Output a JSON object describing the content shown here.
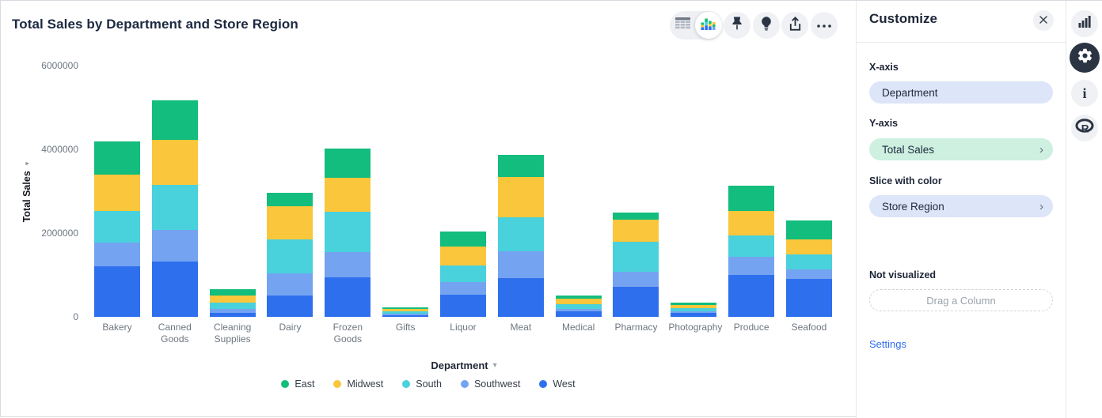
{
  "header": {
    "title": "Total Sales by Department and Store Region",
    "toolbar": {
      "table_view": "table-view",
      "chart_view": "chart-view",
      "pin": "pin",
      "explain": "insights",
      "share": "share",
      "more": "more-options"
    }
  },
  "chart_data": {
    "type": "bar",
    "stacked": true,
    "title": "Total Sales by Department and Store Region",
    "xlabel": "Department",
    "ylabel": "Total Sales",
    "ylim": [
      0,
      6000000
    ],
    "yticks": [
      0,
      2000000,
      4000000,
      6000000
    ],
    "grid": false,
    "legend_position": "bottom",
    "categories": [
      "Bakery",
      "Canned Goods",
      "Cleaning Supplies",
      "Dairy",
      "Frozen Goods",
      "Gifts",
      "Liquor",
      "Meat",
      "Medical",
      "Pharmacy",
      "Photography",
      "Produce",
      "Seafood"
    ],
    "series": [
      {
        "name": "East",
        "color": "#12bd7d",
        "values": [
          800000,
          950000,
          145000,
          315000,
          690000,
          40000,
          360000,
          520000,
          75000,
          165000,
          65000,
          600000,
          455000
        ]
      },
      {
        "name": "Midwest",
        "color": "#f9c63c",
        "values": [
          870000,
          1075000,
          170000,
          785000,
          820000,
          55000,
          445000,
          955000,
          125000,
          520000,
          80000,
          590000,
          360000
        ]
      },
      {
        "name": "South",
        "color": "#49d1dc",
        "values": [
          760000,
          1075000,
          145000,
          810000,
          970000,
          55000,
          400000,
          805000,
          115000,
          710000,
          80000,
          505000,
          355000
        ]
      },
      {
        "name": "Southwest",
        "color": "#74a3f1",
        "values": [
          570000,
          760000,
          95000,
          535000,
          600000,
          45000,
          295000,
          650000,
          65000,
          355000,
          45000,
          425000,
          220000
        ]
      },
      {
        "name": "West",
        "color": "#2e6fee",
        "values": [
          1200000,
          1330000,
          95000,
          505000,
          950000,
          45000,
          525000,
          930000,
          125000,
          710000,
          95000,
          1000000,
          900000
        ]
      }
    ]
  },
  "panel": {
    "title": "Customize",
    "x_axis_label": "X-axis",
    "x_axis_value": "Department",
    "y_axis_label": "Y-axis",
    "y_axis_value": "Total Sales",
    "slice_label": "Slice with color",
    "slice_value": "Store Region",
    "not_visualized_label": "Not visualized",
    "drag_placeholder": "Drag a Column",
    "settings_label": "Settings"
  },
  "colors": {
    "accent_link": "#2f6ded",
    "pill_blue": "#dde5f8",
    "pill_green": "#cdf0e0",
    "icon_dark": "#2b3443"
  }
}
